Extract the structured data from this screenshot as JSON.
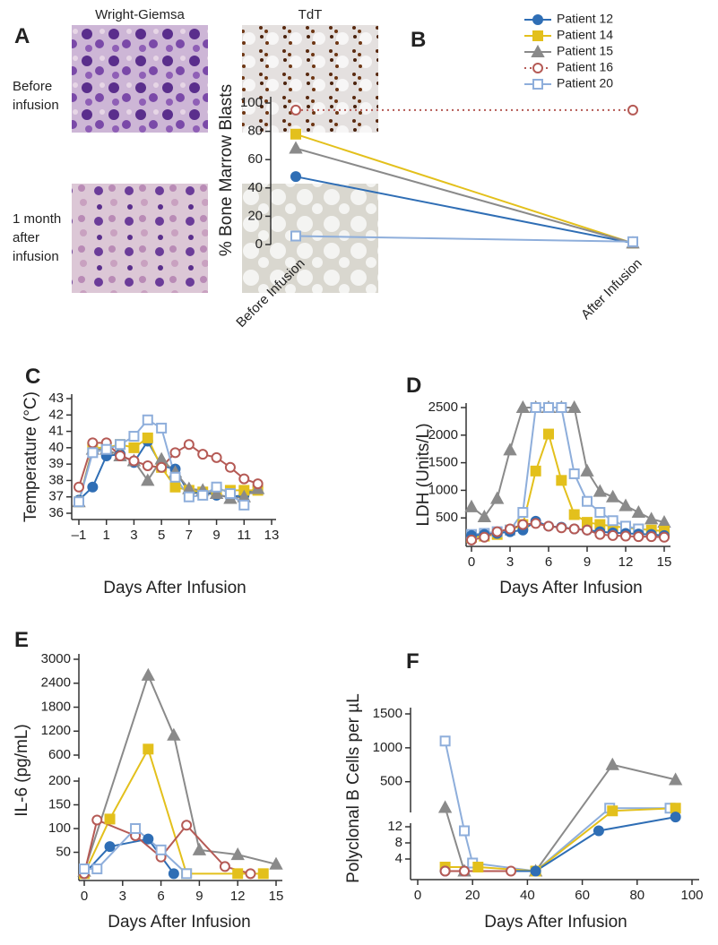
{
  "figure": {
    "panel_labels": [
      "A",
      "B",
      "C",
      "D",
      "E",
      "F"
    ],
    "images": {
      "columns": [
        "Wright-Giemsa",
        "TdT"
      ],
      "rows": [
        "Before infusion",
        "1 month after infusion"
      ]
    }
  },
  "chart_data": [
    {
      "type": "line",
      "categories": [
        "Before Infusion",
        "After Infusion"
      ],
      "y_label": "% Bone Marrow Blasts",
      "ylim": [
        0,
        100
      ],
      "yticks": [
        0,
        20,
        40,
        60,
        80,
        100
      ],
      "legend": "top-right",
      "series": [
        {
          "name": "Patient 12",
          "color": "#2f6eb5",
          "marker": "circle",
          "filled": true,
          "values": [
            48,
            1
          ]
        },
        {
          "name": "Patient 14",
          "color": "#e3c01c",
          "marker": "square",
          "filled": true,
          "values": [
            78,
            1
          ]
        },
        {
          "name": "Patient 15",
          "color": "#8a8a8a",
          "marker": "triangle",
          "filled": true,
          "values": [
            68,
            1
          ]
        },
        {
          "name": "Patient 16",
          "color": "#b55a55",
          "marker": "circle",
          "filled": false,
          "line_style": "dotted",
          "values": [
            95,
            95
          ]
        },
        {
          "name": "Patient 20",
          "color": "#8eaedb",
          "marker": "square",
          "filled": false,
          "values": [
            6,
            2
          ]
        }
      ]
    },
    {
      "type": "line",
      "x_label": "Days After Infusion",
      "y_label": "Temperature (°C)",
      "xlim": [
        -1,
        13
      ],
      "xticks": [
        {
          "value": -1,
          "label": "–1"
        },
        1,
        3,
        5,
        7,
        9,
        11,
        13
      ],
      "ylim": [
        36,
        43
      ],
      "yticks": [
        36,
        37,
        38,
        39,
        40,
        41,
        42,
        43
      ],
      "x": [
        -1,
        0,
        1,
        2,
        3,
        4,
        5,
        6,
        7,
        8,
        9,
        10,
        11,
        12
      ],
      "series": [
        {
          "color": "#2f6eb5",
          "marker": "circle",
          "filled": true,
          "values": [
            36.8,
            37.6,
            39.5,
            39.6,
            39.1,
            40.4,
            38.9,
            38.7,
            37.2,
            37.3,
            37.1,
            37.0,
            37.1,
            37.6
          ]
        },
        {
          "color": "#e3c01c",
          "marker": "square",
          "filled": true,
          "values": [
            36.7,
            40.0,
            40.0,
            40.2,
            40.0,
            40.6,
            38.8,
            37.6,
            37.4,
            37.3,
            37.4,
            37.4,
            37.4,
            37.4
          ]
        },
        {
          "color": "#8a8a8a",
          "marker": "triangle",
          "filled": true,
          "values": [
            36.7,
            39.9,
            39.9,
            39.5,
            39.2,
            38.0,
            39.3,
            38.5,
            37.5,
            37.4,
            37.2,
            36.9,
            37.0,
            37.5
          ]
        },
        {
          "color": "#b55a55",
          "marker": "circle",
          "filled": false,
          "values": [
            37.6,
            40.3,
            40.3,
            39.5,
            39.2,
            38.9,
            38.8,
            39.7,
            40.2,
            39.6,
            39.4,
            38.8,
            38.1,
            37.8
          ]
        },
        {
          "color": "#8eaedb",
          "marker": "square",
          "filled": false,
          "values": [
            36.7,
            39.7,
            39.9,
            40.2,
            40.7,
            41.7,
            41.2,
            38.2,
            37.0,
            37.1,
            37.6,
            37.2,
            36.5,
            null
          ]
        }
      ]
    },
    {
      "type": "line",
      "x_label": "Days After Infusion",
      "y_label": "LDH (Units/L)",
      "xlim": [
        0,
        15
      ],
      "xticks": [
        0,
        3,
        6,
        9,
        12,
        15
      ],
      "ylim": [
        0,
        2500
      ],
      "yticks": [
        500,
        1000,
        1500,
        2000,
        2500
      ],
      "x": [
        0,
        1,
        2,
        3,
        4,
        5,
        6,
        7,
        8,
        9,
        10,
        11,
        12,
        13,
        14,
        15
      ],
      "series": [
        {
          "color": "#8a8a8a",
          "marker": "triangle",
          "filled": true,
          "values": [
            700,
            520,
            850,
            1730,
            2500,
            2500,
            2500,
            2500,
            2500,
            1350,
            980,
            880,
            720,
            600,
            480,
            420
          ]
        },
        {
          "color": "#e3c01c",
          "marker": "square",
          "filled": true,
          "values": [
            150,
            170,
            200,
            280,
            380,
            1350,
            2020,
            1180,
            560,
            420,
            380,
            350,
            320,
            300,
            280,
            260
          ]
        },
        {
          "color": "#8eaedb",
          "marker": "square",
          "filled": false,
          "values": [
            200,
            220,
            250,
            280,
            600,
            2500,
            2500,
            2500,
            1300,
            800,
            600,
            450,
            350,
            300,
            null,
            null
          ]
        },
        {
          "color": "#2f6eb5",
          "marker": "circle",
          "filled": true,
          "values": [
            180,
            200,
            220,
            250,
            280,
            440,
            350,
            330,
            300,
            280,
            250,
            230,
            220,
            210,
            200,
            180
          ]
        },
        {
          "color": "#b55a55",
          "marker": "circle",
          "filled": false,
          "values": [
            100,
            150,
            250,
            300,
            380,
            400,
            350,
            320,
            300,
            280,
            200,
            180,
            170,
            160,
            160,
            150
          ]
        }
      ]
    },
    {
      "type": "line",
      "x_label": "Days After Infusion",
      "y_label": "IL-6 (pg/mL)",
      "xlim": [
        0,
        15
      ],
      "xticks": [
        0,
        3,
        6,
        9,
        12,
        15
      ],
      "ylim": [
        0,
        3000
      ],
      "ybreak": [
        200,
        600
      ],
      "yticks": [
        50,
        100,
        150,
        200,
        600,
        1200,
        1800,
        2400,
        3000
      ],
      "series": [
        {
          "color": "#8a8a8a",
          "marker": "triangle",
          "filled": true,
          "x": [
            0,
            5,
            7,
            9,
            12,
            15
          ],
          "values": [
            10,
            2600,
            1100,
            55,
            45,
            25
          ]
        },
        {
          "color": "#e3c01c",
          "marker": "square",
          "filled": true,
          "x": [
            0,
            2,
            5,
            8,
            12,
            14
          ],
          "values": [
            5,
            120,
            750,
            5,
            5,
            5
          ]
        },
        {
          "color": "#2f6eb5",
          "marker": "circle",
          "filled": true,
          "x": [
            0,
            2,
            5,
            7
          ],
          "values": [
            5,
            62,
            78,
            5
          ]
        },
        {
          "color": "#b55a55",
          "marker": "circle",
          "filled": false,
          "x": [
            0,
            1,
            4,
            6,
            8,
            11,
            13
          ],
          "values": [
            5,
            118,
            85,
            40,
            107,
            20,
            5
          ]
        },
        {
          "color": "#8eaedb",
          "marker": "square",
          "filled": false,
          "x": [
            0,
            1,
            4,
            6,
            8
          ],
          "values": [
            15,
            15,
            100,
            55,
            5
          ]
        }
      ]
    },
    {
      "type": "line",
      "x_label": "Days After Infusion",
      "y_label": "Polyclonal B Cells per µL",
      "xlim": [
        0,
        100
      ],
      "xticks": [
        0,
        20,
        40,
        60,
        80,
        100
      ],
      "ylim": [
        0,
        1500
      ],
      "ybreak": [
        12,
        100
      ],
      "yticks": [
        4,
        8,
        12,
        500,
        1000,
        1500
      ],
      "series": [
        {
          "color": "#8a8a8a",
          "marker": "triangle",
          "filled": true,
          "x": [
            10,
            17,
            43,
            71,
            94
          ],
          "values": [
            120,
            1,
            1,
            750,
            530
          ]
        },
        {
          "color": "#8eaedb",
          "marker": "square",
          "filled": false,
          "x": [
            10,
            17,
            20,
            43,
            70,
            92
          ],
          "values": [
            1100,
            11,
            3,
            1,
            110,
            110
          ]
        },
        {
          "color": "#e3c01c",
          "marker": "square",
          "filled": true,
          "x": [
            10,
            22,
            43,
            71,
            94
          ],
          "values": [
            2,
            2,
            1,
            90,
            110
          ]
        },
        {
          "color": "#2f6eb5",
          "marker": "circle",
          "filled": true,
          "x": [
            10,
            17,
            43,
            66,
            94
          ],
          "values": [
            1,
            1,
            1,
            11,
            60
          ]
        },
        {
          "color": "#b55a55",
          "marker": "circle",
          "filled": false,
          "x": [
            10,
            17,
            34
          ],
          "values": [
            1,
            1,
            1
          ]
        }
      ]
    }
  ]
}
